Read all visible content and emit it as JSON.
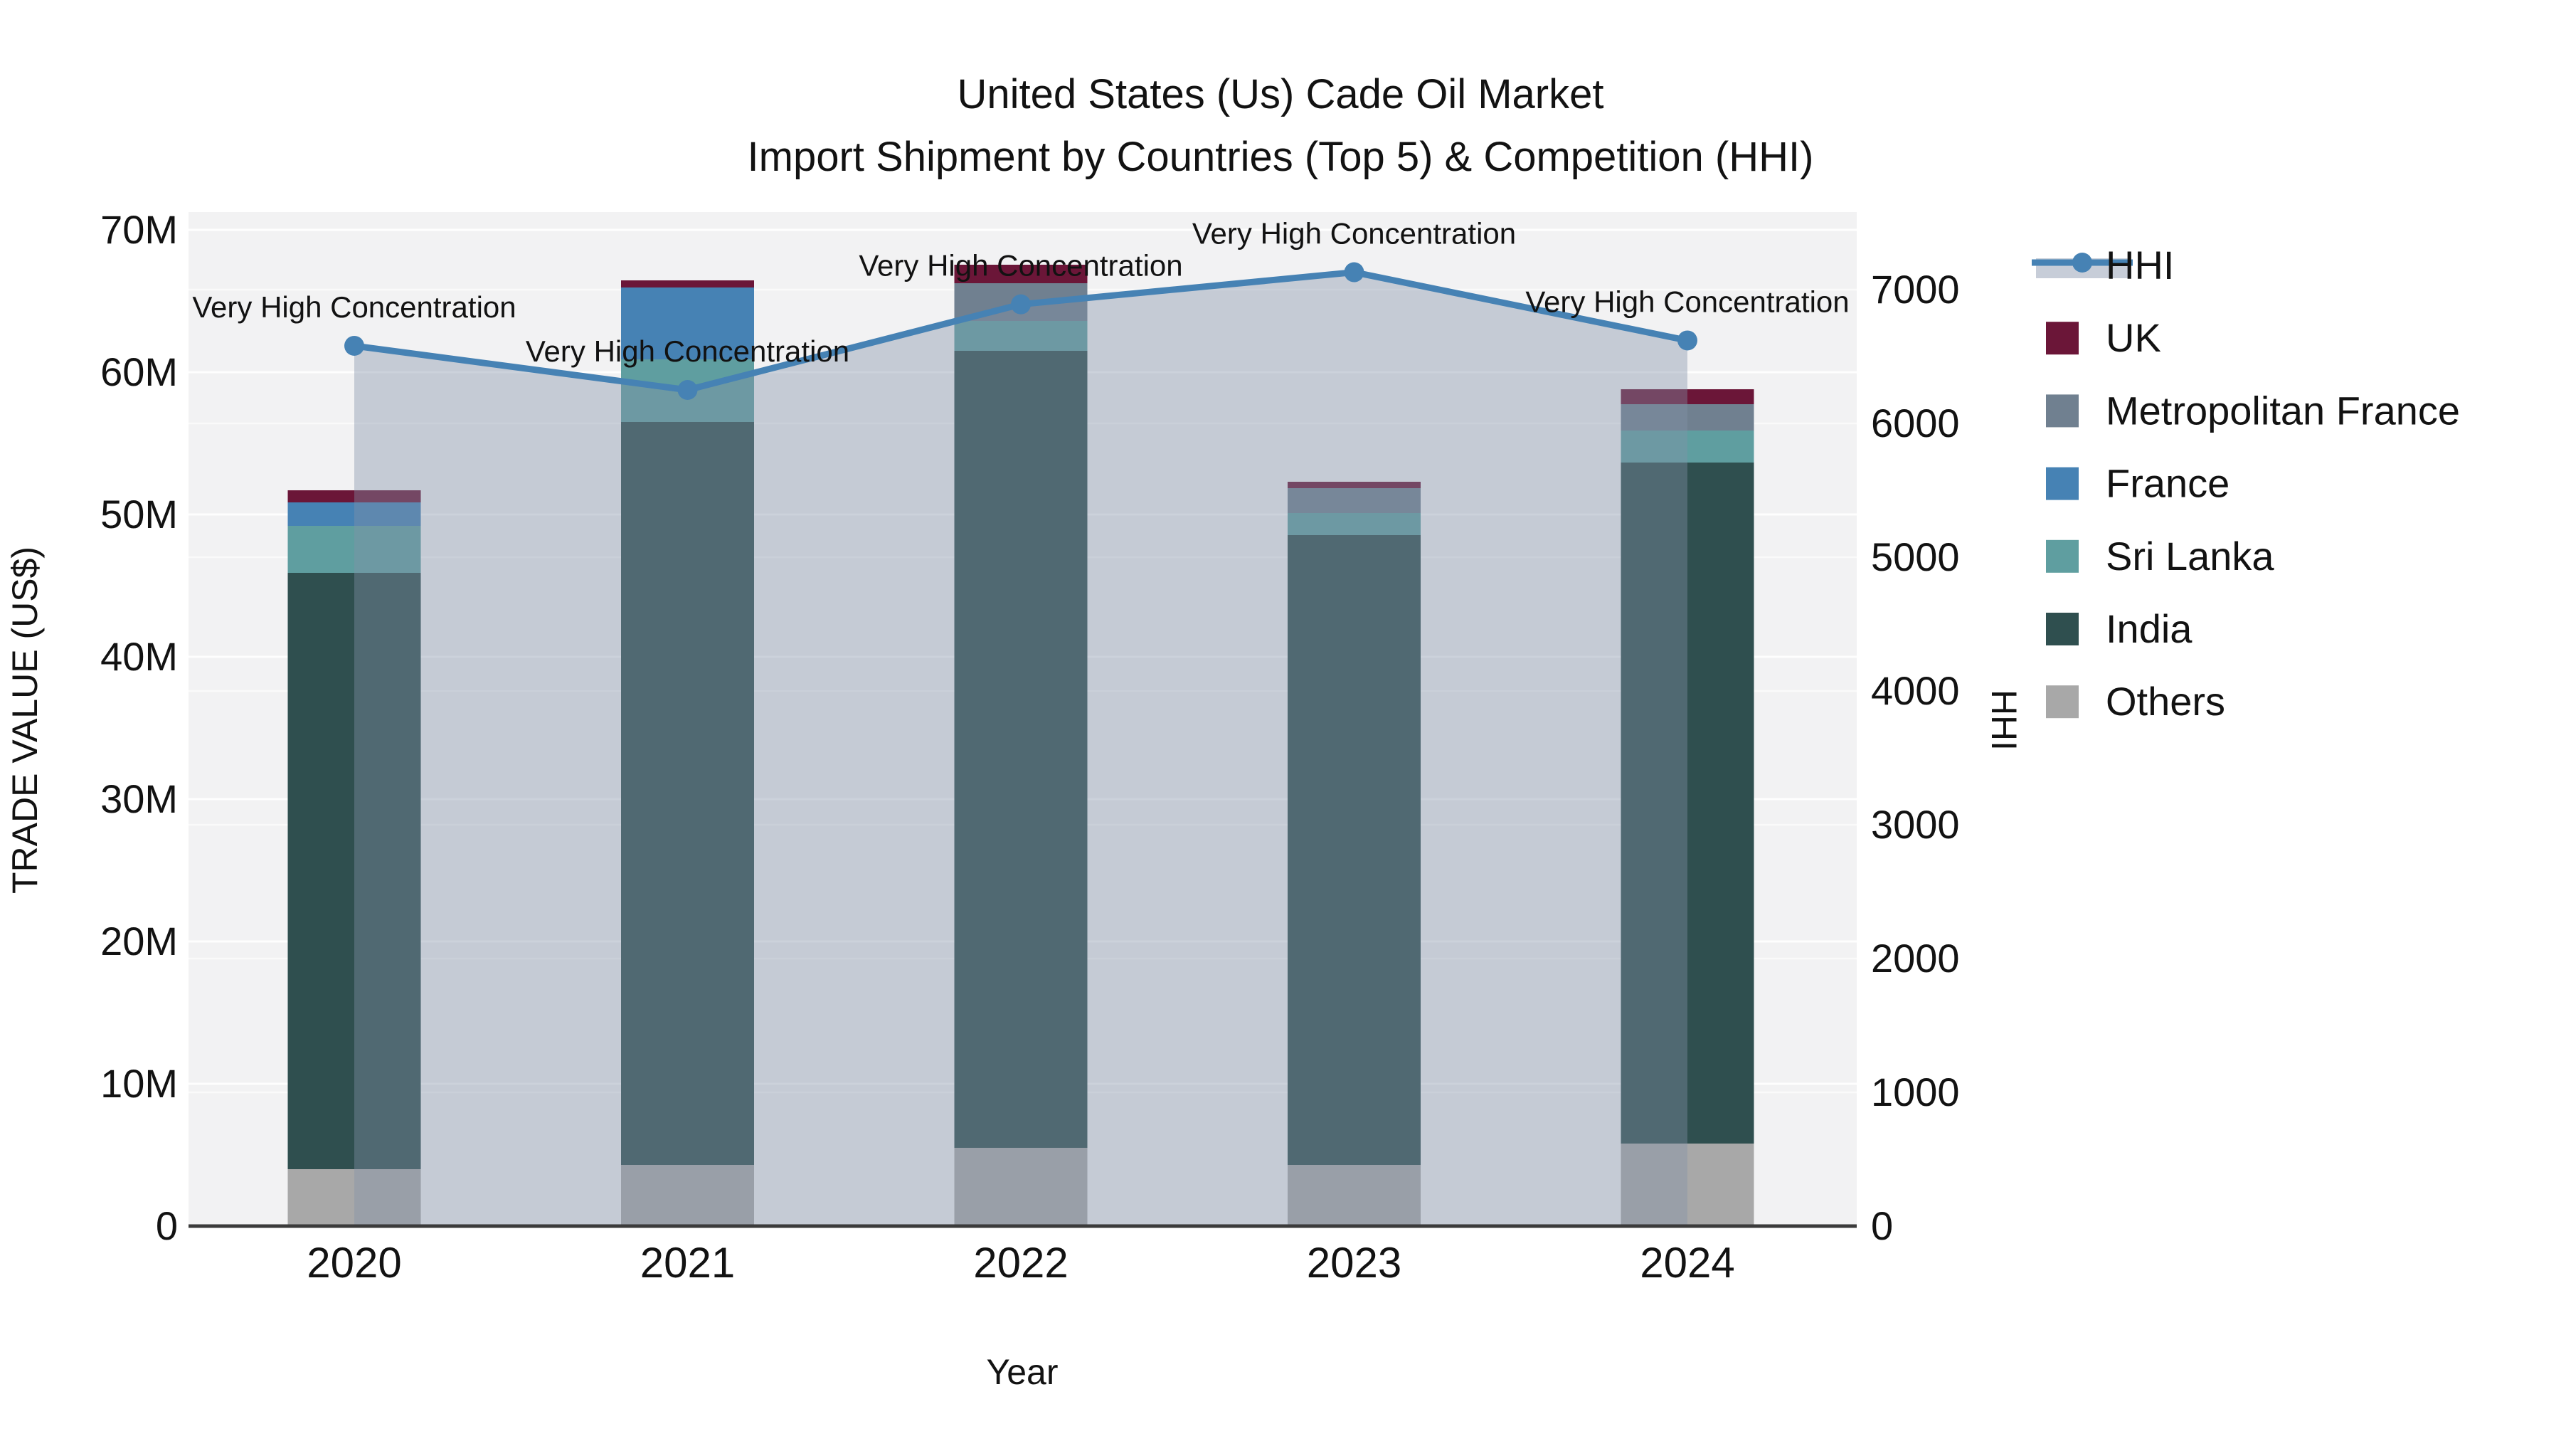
{
  "title": {
    "line1": "United States (Us) Cade Oil Market",
    "line2": "Import Shipment by Countries (Top 5) & Competition (HHI)"
  },
  "axes": {
    "left_label": "TRADE VALUE (US$)",
    "right_label": "HHI",
    "x_label": "Year",
    "left_ticks": [
      "0",
      "10M",
      "20M",
      "30M",
      "40M",
      "50M",
      "60M",
      "70M"
    ],
    "right_ticks": [
      "0",
      "1000",
      "2000",
      "3000",
      "4000",
      "5000",
      "6000",
      "7000"
    ]
  },
  "colors": {
    "HHI": "#4682b4",
    "UK": "#6b1638",
    "Metropolitan France": "#708090",
    "France": "#4682b4",
    "Sri Lanka": "#5f9ea0",
    "India": "#2f4f4f",
    "Others": "#a8a8a8",
    "hhi_band_fill": "rgba(130,146,168,0.40)",
    "hhi_legend_band": "#c7cdd8",
    "plot_background": "#f2f2f3",
    "gridline_major": "rgba(255,255,255,0.92)",
    "gridline_minor": "rgba(255,255,255,0.60)",
    "axis_line": "#3b3b3b"
  },
  "chart_data": {
    "type": "bar",
    "subtype": "stacked-bars-with-right-axis-line",
    "title": "United States (Us) Cade Oil Market — Import Shipment by Countries (Top 5) & Competition (HHI)",
    "categories": [
      "2020",
      "2021",
      "2022",
      "2023",
      "2024"
    ],
    "xlabel": "Year",
    "ylabel_left": "TRADE VALUE (US$)",
    "ylabel_right": "HHI",
    "bar_unit": "million US$",
    "ylim_left_millions": [
      0,
      71.3
    ],
    "ylim_right": [
      0,
      7480
    ],
    "grid": "on",
    "legend_position": "right-outside",
    "bar_series_bottom_to_top": [
      {
        "name": "Others",
        "values_millions": [
          4.0,
          4.3,
          5.5,
          4.3,
          5.8
        ]
      },
      {
        "name": "India",
        "values_millions": [
          41.9,
          52.2,
          56.0,
          44.25,
          47.85
        ]
      },
      {
        "name": "Sri Lanka",
        "values_millions": [
          3.3,
          4.4,
          2.1,
          1.55,
          2.25
        ]
      },
      {
        "name": "France",
        "values_millions": [
          1.65,
          5.05,
          0,
          0,
          0
        ]
      },
      {
        "name": "Metropolitan France",
        "values_millions": [
          0,
          0,
          2.65,
          1.75,
          1.85
        ]
      },
      {
        "name": "UK",
        "values_millions": [
          0.85,
          0.5,
          1.3,
          0.45,
          1.05
        ]
      }
    ],
    "bar_totals_millions": [
      51.7,
      66.45,
      67.55,
      52.3,
      58.8
    ],
    "line_series": {
      "name": "HHI",
      "axis": "right",
      "values": [
        6580,
        6250,
        6890,
        7130,
        6620
      ]
    },
    "annotations": [
      {
        "x": "2020",
        "text": "Very High Concentration"
      },
      {
        "x": "2021",
        "text": "Very High Concentration"
      },
      {
        "x": "2022",
        "text": "Very High Concentration"
      },
      {
        "x": "2023",
        "text": "Very High Concentration"
      },
      {
        "x": "2024",
        "text": "Very High Concentration"
      }
    ],
    "legend_order": [
      "HHI",
      "UK",
      "Metropolitan France",
      "France",
      "Sri Lanka",
      "India",
      "Others"
    ]
  }
}
